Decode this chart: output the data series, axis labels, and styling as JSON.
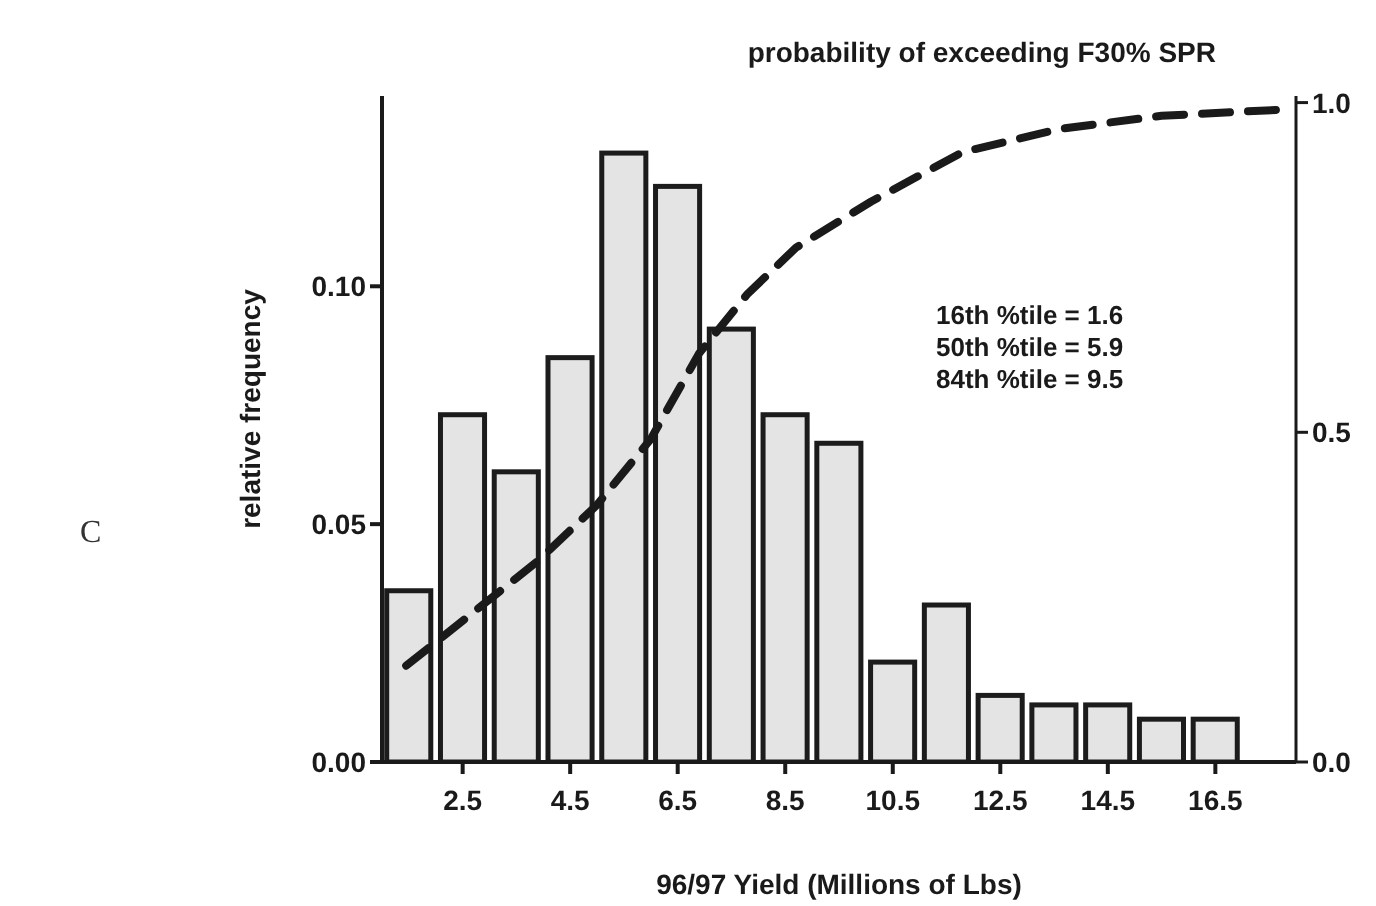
{
  "chart_data": {
    "type": "histogram",
    "xlabel": "96/97 Yield (Millions of Lbs)",
    "ylabel": "relative frequency",
    "y2label": "probability of exceeding F30% SPR",
    "annotations": [
      "16th %tile = 1.6",
      "50th %tile = 5.9",
      "84th %tile = 9.5",
      "C"
    ],
    "series": [
      {
        "color": "#e4e4e4",
        "bins": [
          1,
          2,
          3,
          4,
          5,
          6,
          7,
          8,
          9,
          10,
          11,
          12,
          13,
          14,
          15,
          16,
          17
        ],
        "values": [
          0.036,
          0.073,
          0.061,
          0.085,
          0.128,
          0.121,
          0.091,
          0.073,
          0.067,
          0.021,
          0.033,
          0.014,
          0.012,
          0.012,
          0.009,
          0.009
        ]
      },
      {
        "type": "line",
        "axis": "y2",
        "color": "#1a1a1a",
        "line_style": "dashed",
        "x": [
          1.45,
          2.9,
          3.9,
          5.0,
          6.0,
          6.9,
          7.8,
          8.7,
          10.1,
          11.8,
          13.6,
          15.5,
          17.9
        ],
        "values": [
          0.146,
          0.24,
          0.305,
          0.39,
          0.49,
          0.62,
          0.71,
          0.78,
          0.85,
          0.925,
          0.96,
          0.98,
          0.99
        ]
      }
    ],
    "xlim": [
      1,
      18
    ],
    "xticks": [
      2.5,
      4.5,
      6.5,
      8.5,
      10.5,
      12.5,
      14.5,
      16.5
    ],
    "ylim": [
      0,
      0.14
    ],
    "yticks": [
      {
        "value": 0,
        "label": "0.00"
      },
      {
        "value": 0.05,
        "label": "0.05"
      },
      {
        "value": 0.1,
        "label": "0.10"
      }
    ],
    "y2lim": [
      0,
      1.01
    ],
    "y2ticks": [
      {
        "value": 0,
        "label": "0.0"
      },
      {
        "value": 0.5,
        "label": "0.5"
      },
      {
        "value": 1,
        "label": "1.0"
      }
    ],
    "grid": false,
    "legend": false,
    "marker": "none"
  }
}
